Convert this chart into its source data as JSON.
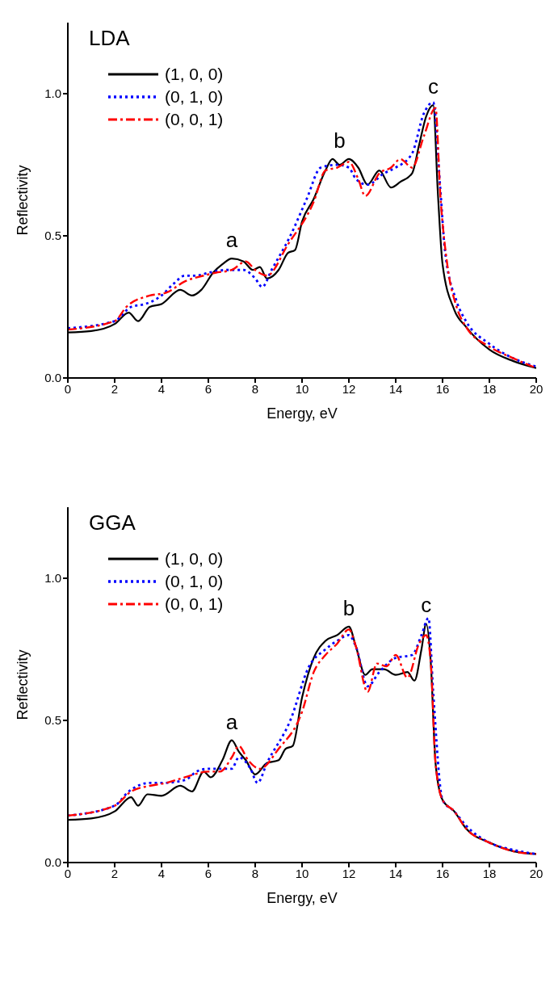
{
  "chart_data": [
    {
      "type": "line",
      "title": "LDA",
      "xlabel": "Energy, eV",
      "ylabel": "Reflectivity",
      "xlim": [
        0,
        20
      ],
      "xticks": [
        0,
        2,
        4,
        6,
        8,
        10,
        12,
        14,
        16,
        18,
        20
      ],
      "ylim": [
        0,
        1.25
      ],
      "yticks": [
        {
          "value": 0,
          "label": "0.0"
        },
        {
          "value": 0.5,
          "label": "0.5"
        },
        {
          "value": 1,
          "label": "1.0"
        }
      ],
      "grid": false,
      "legend": "top left",
      "marker": "none",
      "annotations": [
        {
          "text": "a",
          "x": 7,
          "y": 0.42
        },
        {
          "text": "b",
          "x": 11.6,
          "y": 0.77
        },
        {
          "text": "c",
          "x": 15.6,
          "y": 0.96
        }
      ],
      "series": [
        {
          "name": "(1, 0, 0)",
          "color": "#000000",
          "line_style": "solid",
          "x": [
            0,
            1,
            2,
            2.6,
            3,
            3.5,
            4,
            4.8,
            5.3,
            5.7,
            6.2,
            6.6,
            7,
            7.5,
            7.9,
            8.2,
            8.5,
            9,
            9.4,
            9.7,
            10,
            10.5,
            11,
            11.3,
            11.6,
            12,
            12.4,
            12.8,
            13.3,
            13.8,
            14.2,
            14.7,
            15,
            15.3,
            15.6,
            15.8,
            16,
            16.5,
            17,
            18,
            19,
            20
          ],
          "values": [
            0.16,
            0.165,
            0.19,
            0.23,
            0.2,
            0.25,
            0.26,
            0.31,
            0.29,
            0.31,
            0.37,
            0.4,
            0.42,
            0.41,
            0.38,
            0.39,
            0.35,
            0.38,
            0.44,
            0.45,
            0.55,
            0.63,
            0.73,
            0.77,
            0.75,
            0.77,
            0.74,
            0.68,
            0.73,
            0.67,
            0.69,
            0.72,
            0.82,
            0.92,
            0.96,
            0.65,
            0.4,
            0.24,
            0.18,
            0.1,
            0.06,
            0.035
          ]
        },
        {
          "name": "(0, 1, 0)",
          "color": "#0000ff",
          "line_style": "dotted",
          "x": [
            0,
            2,
            2.7,
            3.3,
            4,
            4.5,
            5,
            5.5,
            6,
            6.8,
            7.5,
            8,
            8.3,
            8.7,
            9.5,
            10.2,
            10.8,
            11.5,
            12,
            12.3,
            12.8,
            13.5,
            14,
            14.7,
            15.2,
            15.6,
            15.9,
            16.1,
            16.6,
            17,
            18,
            19,
            20
          ],
          "values": [
            0.175,
            0.2,
            0.25,
            0.26,
            0.29,
            0.33,
            0.36,
            0.36,
            0.37,
            0.38,
            0.38,
            0.35,
            0.32,
            0.38,
            0.5,
            0.63,
            0.74,
            0.75,
            0.74,
            0.7,
            0.68,
            0.72,
            0.74,
            0.79,
            0.93,
            0.97,
            0.67,
            0.45,
            0.27,
            0.2,
            0.12,
            0.07,
            0.04
          ]
        },
        {
          "name": "(0, 0, 1)",
          "color": "#ff0000",
          "line_style": "dashdot",
          "x": [
            0,
            2,
            2.5,
            3.5,
            4.2,
            5,
            5.8,
            6.3,
            7,
            7.6,
            8,
            8.5,
            9.4,
            10.5,
            11,
            11.5,
            12,
            12.4,
            12.7,
            13.3,
            13.8,
            14.2,
            14.7,
            15.2,
            15.7,
            15.9,
            16.2,
            16.6,
            17,
            18,
            19,
            20
          ],
          "values": [
            0.17,
            0.2,
            0.25,
            0.29,
            0.3,
            0.34,
            0.36,
            0.37,
            0.38,
            0.41,
            0.38,
            0.36,
            0.47,
            0.62,
            0.73,
            0.74,
            0.76,
            0.7,
            0.64,
            0.72,
            0.74,
            0.77,
            0.74,
            0.85,
            0.95,
            0.65,
            0.4,
            0.25,
            0.18,
            0.11,
            0.07,
            0.035
          ]
        }
      ]
    },
    {
      "type": "line",
      "title": "GGA",
      "xlabel": "Energy, eV",
      "ylabel": "Reflectivity",
      "xlim": [
        0,
        20
      ],
      "xticks": [
        0,
        2,
        4,
        6,
        8,
        10,
        12,
        14,
        16,
        18,
        20
      ],
      "ylim": [
        0,
        1.25
      ],
      "yticks": [
        {
          "value": 0,
          "label": "0.0"
        },
        {
          "value": 0.5,
          "label": "0.5"
        },
        {
          "value": 1,
          "label": "1.0"
        }
      ],
      "grid": false,
      "legend": "top left",
      "marker": "none",
      "annotations": [
        {
          "text": "a",
          "x": 7,
          "y": 0.43
        },
        {
          "text": "b",
          "x": 12,
          "y": 0.83
        },
        {
          "text": "c",
          "x": 15.3,
          "y": 0.84
        }
      ],
      "series": [
        {
          "name": "(1, 0, 0)",
          "color": "#000000",
          "line_style": "solid",
          "x": [
            0,
            1,
            2,
            2.7,
            3,
            3.4,
            4,
            4.8,
            5.3,
            5.8,
            6.1,
            6.6,
            7,
            7.3,
            7.6,
            8,
            8.5,
            9,
            9.3,
            9.6,
            10,
            10.5,
            11,
            11.5,
            12,
            12.3,
            12.7,
            13,
            13.5,
            14,
            14.5,
            14.8,
            15.1,
            15.3,
            15.5,
            15.7,
            16,
            16.5,
            17,
            18,
            19,
            20
          ],
          "values": [
            0.15,
            0.155,
            0.18,
            0.23,
            0.2,
            0.24,
            0.235,
            0.27,
            0.25,
            0.32,
            0.3,
            0.36,
            0.43,
            0.39,
            0.36,
            0.31,
            0.35,
            0.36,
            0.4,
            0.41,
            0.58,
            0.72,
            0.78,
            0.8,
            0.83,
            0.76,
            0.66,
            0.68,
            0.68,
            0.66,
            0.67,
            0.64,
            0.75,
            0.84,
            0.7,
            0.35,
            0.22,
            0.18,
            0.12,
            0.07,
            0.04,
            0.03
          ]
        },
        {
          "name": "(0, 1, 0)",
          "color": "#0000ff",
          "line_style": "dotted",
          "x": [
            0,
            2,
            2.6,
            3.5,
            4,
            5,
            5.5,
            6,
            7,
            7.3,
            7.8,
            8.1,
            8.5,
            9.5,
            10.3,
            11,
            11.5,
            12,
            12.3,
            12.8,
            13.3,
            14,
            14.7,
            15.1,
            15.4,
            15.6,
            16,
            16.5,
            17,
            18,
            19,
            20
          ],
          "values": [
            0.165,
            0.2,
            0.25,
            0.28,
            0.28,
            0.29,
            0.32,
            0.33,
            0.33,
            0.37,
            0.33,
            0.28,
            0.35,
            0.5,
            0.69,
            0.75,
            0.78,
            0.8,
            0.76,
            0.62,
            0.67,
            0.72,
            0.73,
            0.8,
            0.86,
            0.6,
            0.22,
            0.18,
            0.13,
            0.07,
            0.045,
            0.03
          ]
        },
        {
          "name": "(0, 0, 1)",
          "color": "#ff0000",
          "line_style": "dashdot",
          "x": [
            0,
            2,
            2.7,
            3.5,
            4.2,
            5,
            6,
            6.5,
            7,
            7.3,
            7.7,
            8.2,
            9,
            10,
            10.5,
            11,
            11.5,
            12,
            12.3,
            12.8,
            13.2,
            13.6,
            14,
            14.5,
            15,
            15.3,
            15.5,
            15.7,
            16,
            16.5,
            17,
            18,
            19,
            20
          ],
          "values": [
            0.165,
            0.2,
            0.25,
            0.27,
            0.28,
            0.3,
            0.32,
            0.32,
            0.37,
            0.41,
            0.36,
            0.33,
            0.4,
            0.53,
            0.67,
            0.73,
            0.77,
            0.82,
            0.76,
            0.6,
            0.7,
            0.69,
            0.73,
            0.65,
            0.77,
            0.8,
            0.7,
            0.35,
            0.22,
            0.18,
            0.12,
            0.07,
            0.04,
            0.03
          ]
        }
      ]
    }
  ]
}
